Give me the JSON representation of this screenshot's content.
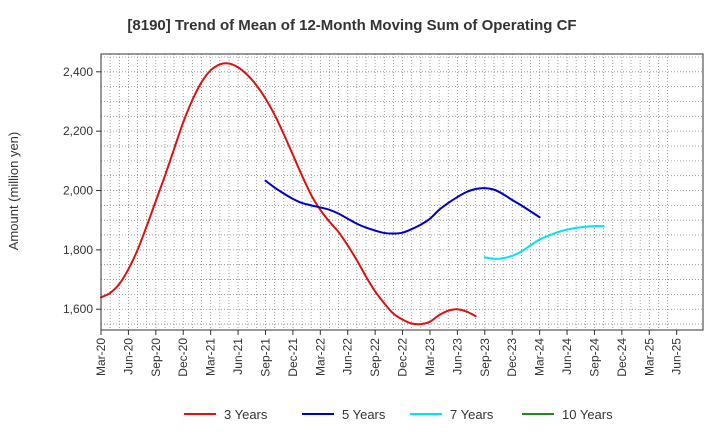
{
  "chart_data": {
    "type": "line",
    "title": "[8190]  Trend of Mean of 12-Month Moving Sum of Operating CF",
    "xlabel": "",
    "ylabel": "Amount (million yen)",
    "ylim": [
      1530,
      2460
    ],
    "yticks": [
      1600,
      1800,
      2000,
      2200,
      2400
    ],
    "ytick_labels": [
      "1,600",
      "1,800",
      "2,000",
      "2,200",
      "2,400"
    ],
    "x_ticks": [
      "Mar-20",
      "Jun-20",
      "Sep-20",
      "Dec-20",
      "Mar-21",
      "Jun-21",
      "Sep-21",
      "Dec-21",
      "Mar-22",
      "Jun-22",
      "Sep-22",
      "Dec-22",
      "Mar-23",
      "Jun-23",
      "Sep-23",
      "Dec-23",
      "Mar-24",
      "Jun-24",
      "Sep-24",
      "Dec-24",
      "Mar-25",
      "Jun-25"
    ],
    "grid": true,
    "legend": "bottom",
    "series": [
      {
        "name": "3 Years",
        "color": "#dd1111",
        "x_start": 0,
        "values": [
          1640,
          1655,
          1685,
          1735,
          1800,
          1880,
          1965,
          2050,
          2140,
          2230,
          2305,
          2365,
          2405,
          2425,
          2428,
          2415,
          2390,
          2355,
          2310,
          2255,
          2190,
          2120,
          2050,
          1985,
          1935,
          1895,
          1860,
          1815,
          1765,
          1710,
          1660,
          1620,
          1585,
          1565,
          1552,
          1550,
          1558,
          1580,
          1595,
          1600,
          1592,
          1577
        ]
      },
      {
        "name": "5 Years",
        "color": "#0000cc",
        "x_start": 18,
        "values": [
          2033,
          2010,
          1990,
          1972,
          1958,
          1950,
          1943,
          1935,
          1922,
          1905,
          1888,
          1875,
          1865,
          1857,
          1855,
          1858,
          1870,
          1885,
          1905,
          1935,
          1958,
          1978,
          1995,
          2005,
          2008,
          2003,
          1988,
          1968,
          1950,
          1930,
          1910
        ]
      },
      {
        "name": "7 Years",
        "color": "#00e5ee",
        "x_start": 42,
        "values": [
          1775,
          1770,
          1772,
          1780,
          1795,
          1815,
          1835,
          1848,
          1860,
          1868,
          1874,
          1878,
          1880,
          1880
        ]
      },
      {
        "name": "10 Years",
        "color": "#228822",
        "x_start": 0,
        "values": []
      }
    ]
  }
}
